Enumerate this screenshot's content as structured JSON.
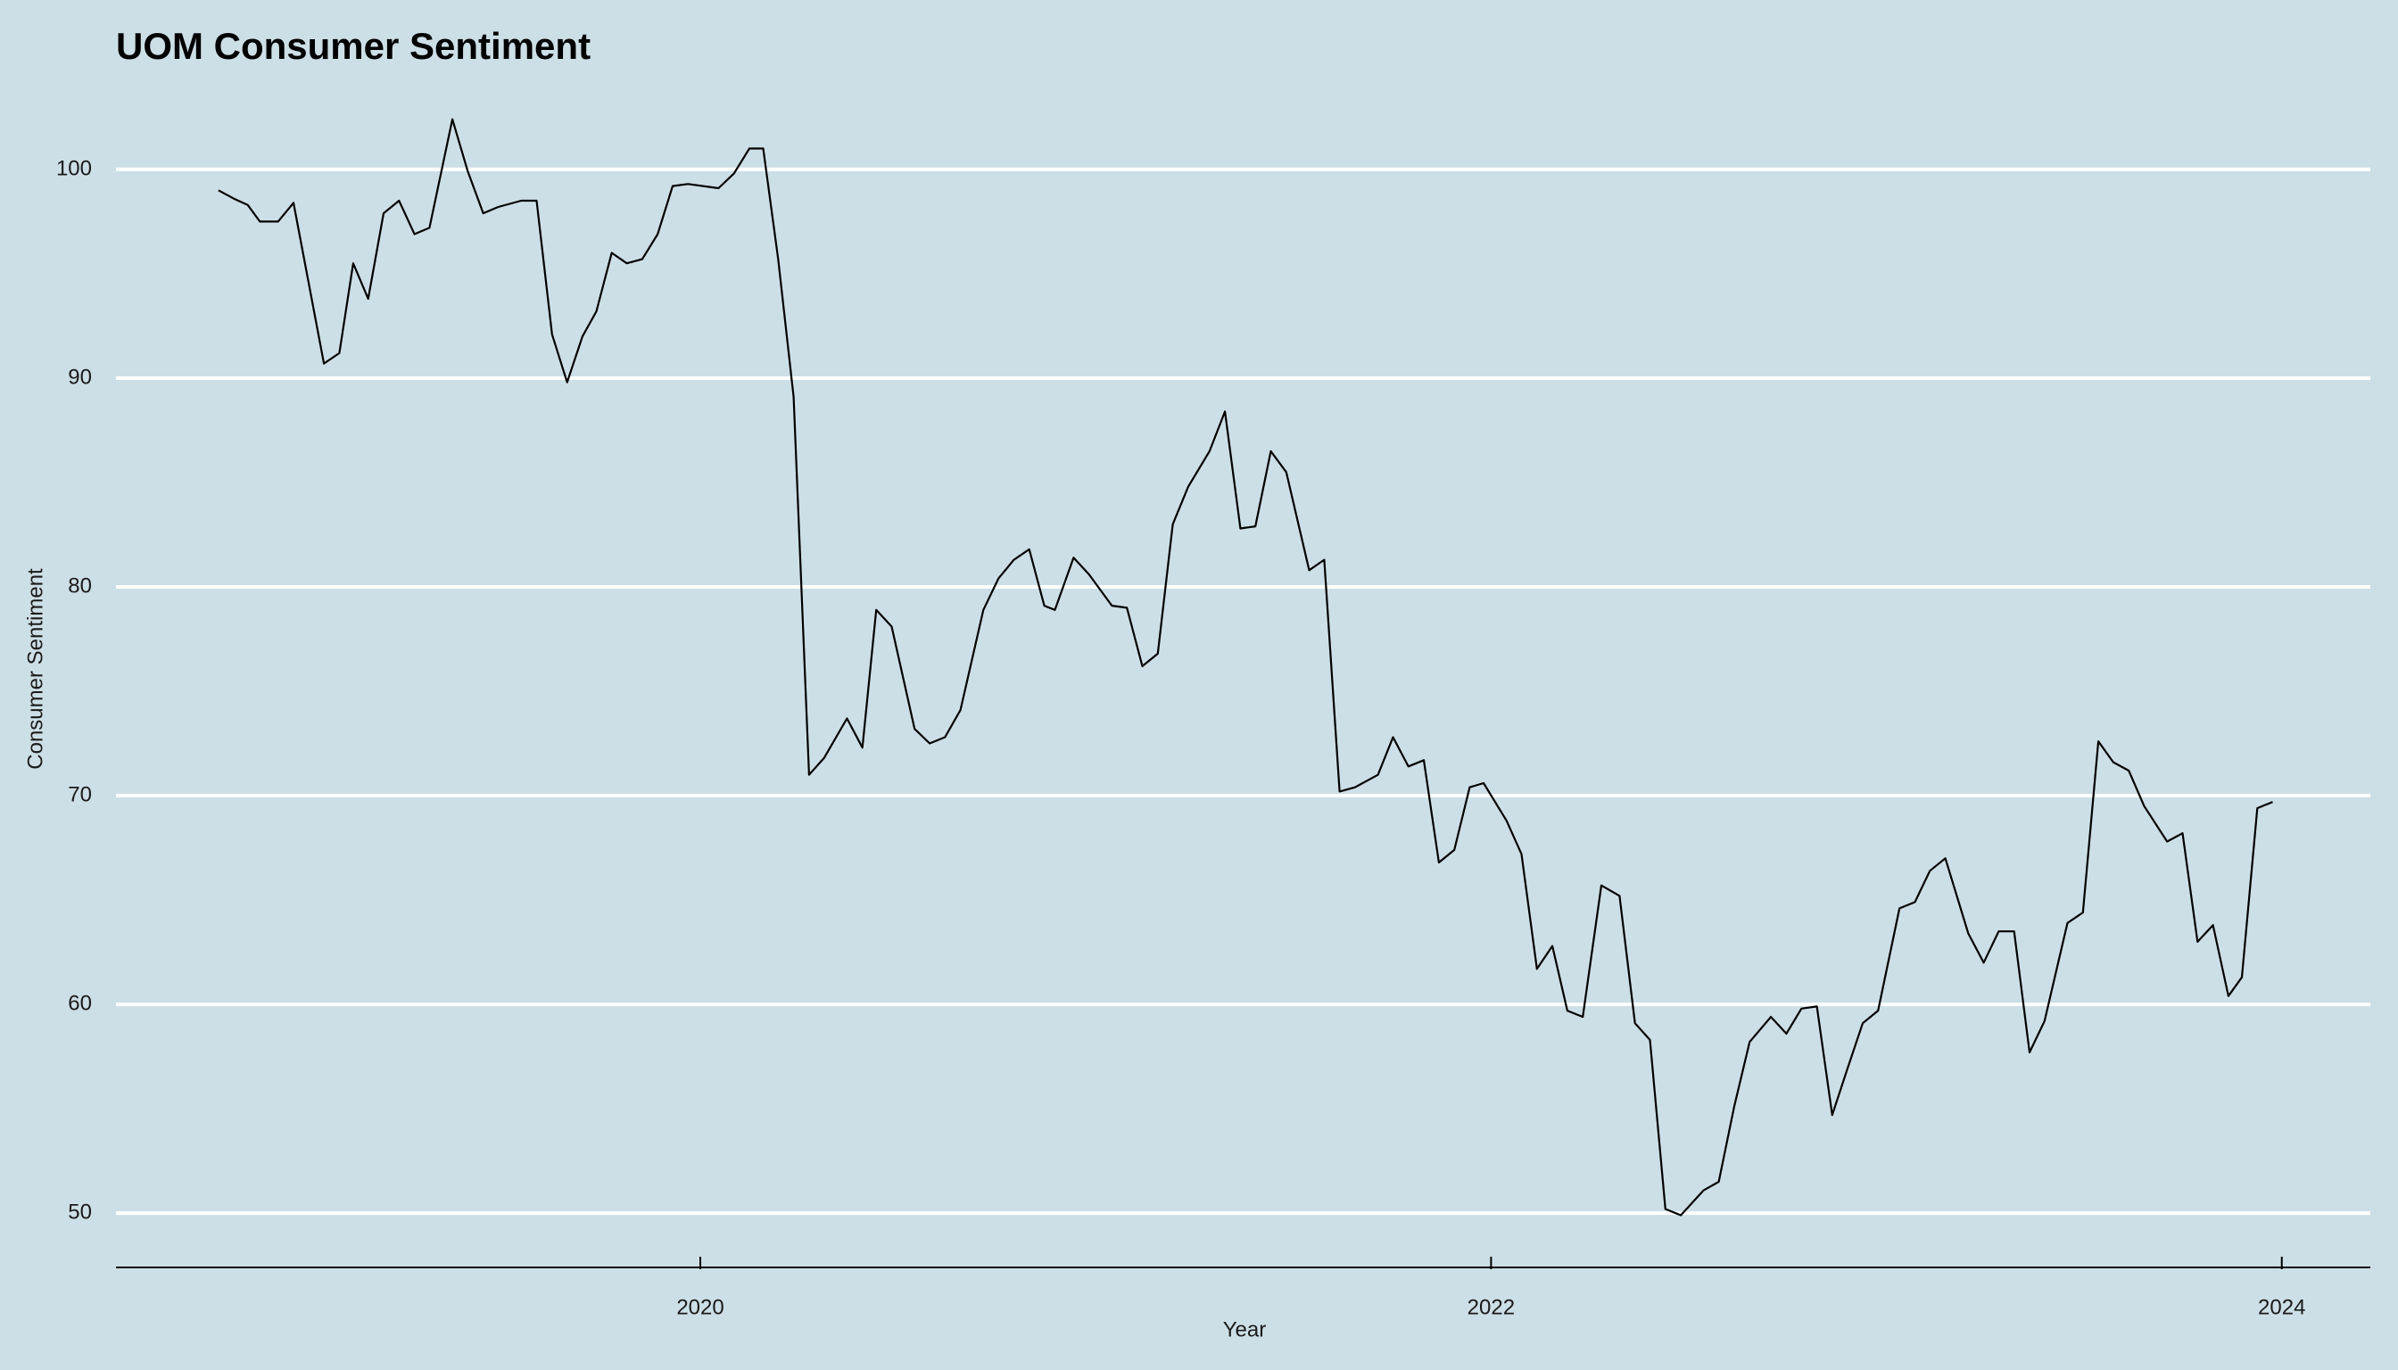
{
  "chart_data": {
    "type": "line",
    "title": "UOM Consumer Sentiment",
    "x_label": "Year",
    "y_label": "Consumer Sentiment",
    "x": [
      2018.781,
      2018.82,
      2018.855,
      2018.886,
      2018.932,
      2018.971,
      2019.048,
      2019.087,
      2019.122,
      2019.16,
      2019.199,
      2019.238,
      2019.277,
      2019.315,
      2019.373,
      2019.412,
      2019.451,
      2019.489,
      2019.547,
      2019.586,
      2019.625,
      2019.663,
      2019.702,
      2019.737,
      2019.776,
      2019.814,
      2019.853,
      2019.892,
      2019.93,
      2019.969,
      2020.046,
      2020.085,
      2020.124,
      2020.159,
      2020.197,
      2020.236,
      2020.275,
      2020.313,
      2020.371,
      2020.41,
      2020.445,
      2020.484,
      2020.542,
      2020.58,
      2020.619,
      2020.658,
      2020.716,
      2020.754,
      2020.793,
      2020.832,
      2020.87,
      2020.897,
      2020.944,
      2020.983,
      2021.041,
      2021.079,
      2021.118,
      2021.157,
      2021.195,
      2021.234,
      2021.288,
      2021.327,
      2021.366,
      2021.404,
      2021.443,
      2021.482,
      2021.54,
      2021.578,
      2021.617,
      2021.656,
      2021.714,
      2021.752,
      2021.791,
      2021.83,
      2021.868,
      2021.907,
      2021.946,
      2021.981,
      2022.039,
      2022.077,
      2022.116,
      2022.155,
      2022.193,
      2022.232,
      2022.279,
      2022.325,
      2022.364,
      2022.402,
      2022.441,
      2022.48,
      2022.538,
      2022.576,
      2022.615,
      2022.654,
      2022.708,
      2022.747,
      2022.785,
      2022.824,
      2022.863,
      2022.901,
      2022.94,
      2022.979,
      2023.033,
      2023.072,
      2023.11,
      2023.149,
      2023.207,
      2023.246,
      2023.284,
      2023.323,
      2023.362,
      2023.4,
      2023.458,
      2023.497,
      2023.536,
      2023.574,
      2023.613,
      2023.652,
      2023.71,
      2023.749,
      2023.787,
      2023.826,
      2023.865,
      2023.899,
      2023.938,
      2023.977
    ],
    "values": [
      99.0,
      98.6,
      98.3,
      97.5,
      97.5,
      98.4,
      90.7,
      91.2,
      95.5,
      93.8,
      97.9,
      98.5,
      96.9,
      97.2,
      102.4,
      99.9,
      97.9,
      98.2,
      98.5,
      98.5,
      92.1,
      89.8,
      92.0,
      93.2,
      96.0,
      95.5,
      95.7,
      96.9,
      99.2,
      99.3,
      99.1,
      99.8,
      101.0,
      101.0,
      95.7,
      89.1,
      71.0,
      71.8,
      73.7,
      72.3,
      78.9,
      78.1,
      73.2,
      72.5,
      72.8,
      74.1,
      78.9,
      80.4,
      81.3,
      81.8,
      79.1,
      78.9,
      81.4,
      80.6,
      79.1,
      79.0,
      76.2,
      76.8,
      83.0,
      84.8,
      86.5,
      88.4,
      82.8,
      82.9,
      86.5,
      85.5,
      80.8,
      81.3,
      70.2,
      70.4,
      71.0,
      72.8,
      71.4,
      71.7,
      66.8,
      67.4,
      70.4,
      70.6,
      68.8,
      67.2,
      61.7,
      62.8,
      59.7,
      59.4,
      65.7,
      65.2,
      59.1,
      58.3,
      50.2,
      49.9,
      51.1,
      51.5,
      55.1,
      58.2,
      59.4,
      58.6,
      59.8,
      59.9,
      54.7,
      56.9,
      59.1,
      59.7,
      64.6,
      64.9,
      66.4,
      67.0,
      63.4,
      62.0,
      63.5,
      63.5,
      57.7,
      59.2,
      63.9,
      64.4,
      72.6,
      71.6,
      71.2,
      69.5,
      67.8,
      68.2,
      63.0,
      63.8,
      60.4,
      61.3,
      69.4,
      69.7
    ],
    "color": "#000000",
    "xlim": [
      2018.522,
      2024.224
    ],
    "xticks": [
      2020,
      2022,
      2024
    ],
    "ylim": [
      47.4,
      103.5
    ],
    "yticks": [
      50,
      60,
      70,
      80,
      90,
      100
    ],
    "grid": true
  }
}
